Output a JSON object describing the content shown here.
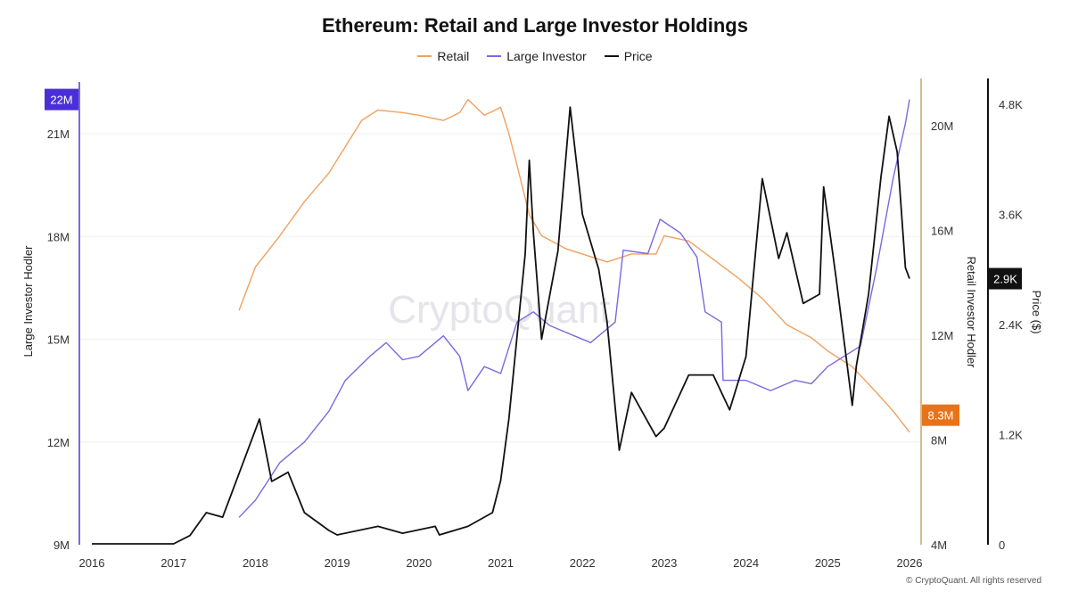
{
  "chart_data": {
    "type": "line",
    "title": "Ethereum: Retail and Large Investor Holdings",
    "legend_placement": "top-center",
    "grid": true,
    "watermark": "CryptoQuant",
    "footer": "© CryptoQuant. All rights reserved",
    "x_axis": {
      "ticks": [
        "2016",
        "2017",
        "2018",
        "2019",
        "2020",
        "2021",
        "2022",
        "2023",
        "2024",
        "2025",
        "2026"
      ],
      "range": [
        2016,
        2026.1
      ]
    },
    "axes": {
      "left": {
        "label": "Large Investor Hodler",
        "ticks": [
          "9M",
          "12M",
          "15M",
          "18M",
          "21M"
        ],
        "tick_values": [
          9,
          12,
          15,
          18,
          21
        ],
        "range": [
          9,
          22
        ],
        "last_value_label": "22M",
        "color": "#4a2fd8"
      },
      "right_retail": {
        "label": "Retail Investor Hodler",
        "ticks": [
          "4M",
          "8M",
          "12M",
          "16M",
          "20M"
        ],
        "tick_values": [
          4,
          8,
          12,
          16,
          20
        ],
        "range": [
          4,
          20
        ],
        "last_value_label": "8.3M",
        "color": "#e8731a"
      },
      "right_price": {
        "label": "Price ($)",
        "ticks": [
          "0",
          "1.2K",
          "2.4K",
          "3.6K",
          "4.8K"
        ],
        "tick_values": [
          0,
          1200,
          2400,
          3600,
          4800
        ],
        "range": [
          0,
          4800
        ],
        "last_value_label": "2.9K",
        "color": "#111111"
      }
    },
    "series": [
      {
        "name": "Retail",
        "axis": "right_retail",
        "color": "#f0a060",
        "unit": "M",
        "x": [
          2017.8,
          2018.0,
          2018.3,
          2018.6,
          2018.9,
          2019.1,
          2019.3,
          2019.5,
          2019.8,
          2020.0,
          2020.3,
          2020.5,
          2020.6,
          2020.8,
          2021.0,
          2021.1,
          2021.2,
          2021.35,
          2021.5,
          2021.8,
          2022.0,
          2022.3,
          2022.6,
          2022.9,
          2023.0,
          2023.3,
          2023.6,
          2023.9,
          2024.2,
          2024.5,
          2024.8,
          2025.0,
          2025.3,
          2025.6,
          2025.8,
          2026.0
        ],
        "y": [
          12.95,
          14.6,
          15.8,
          17.1,
          18.2,
          19.2,
          20.2,
          20.6,
          20.5,
          20.4,
          20.2,
          20.5,
          21.0,
          20.4,
          20.7,
          19.7,
          18.5,
          16.6,
          15.8,
          15.3,
          15.1,
          14.8,
          15.1,
          15.1,
          15.8,
          15.6,
          14.9,
          14.2,
          13.4,
          12.4,
          11.9,
          11.4,
          10.8,
          9.8,
          9.1,
          8.3
        ]
      },
      {
        "name": "Large Investor",
        "axis": "left",
        "color": "#7b68e0",
        "unit": "M",
        "x": [
          2017.8,
          2018.0,
          2018.3,
          2018.6,
          2018.9,
          2019.1,
          2019.4,
          2019.6,
          2019.8,
          2020.0,
          2020.3,
          2020.5,
          2020.6,
          2020.8,
          2021.0,
          2021.2,
          2021.4,
          2021.6,
          2021.9,
          2022.1,
          2022.4,
          2022.5,
          2022.8,
          2022.95,
          2023.2,
          2023.4,
          2023.5,
          2023.7,
          2023.72,
          2024.0,
          2024.3,
          2024.6,
          2024.8,
          2025.0,
          2025.2,
          2025.4,
          2025.6,
          2025.8,
          2025.95,
          2026.0
        ],
        "y": [
          9.8,
          10.3,
          11.4,
          12.0,
          12.9,
          13.8,
          14.5,
          14.9,
          14.4,
          14.5,
          15.1,
          14.5,
          13.5,
          14.2,
          14.0,
          15.5,
          15.8,
          15.4,
          15.1,
          14.9,
          15.5,
          17.6,
          17.5,
          18.5,
          18.1,
          17.4,
          15.8,
          15.5,
          13.8,
          13.8,
          13.5,
          13.8,
          13.7,
          14.2,
          14.5,
          14.8,
          17.1,
          19.7,
          21.3,
          22.0
        ]
      },
      {
        "name": "Price",
        "axis": "right_price",
        "color": "#111111",
        "unit": "$",
        "x": [
          2016.0,
          2017.0,
          2017.2,
          2017.4,
          2017.6,
          2018.05,
          2018.2,
          2018.4,
          2018.6,
          2018.9,
          2019.0,
          2019.5,
          2019.8,
          2020.2,
          2020.25,
          2020.6,
          2020.9,
          2021.0,
          2021.1,
          2021.3,
          2021.35,
          2021.4,
          2021.5,
          2021.7,
          2021.85,
          2022.0,
          2022.2,
          2022.3,
          2022.45,
          2022.6,
          2022.9,
          2023.0,
          2023.3,
          2023.6,
          2023.8,
          2024.0,
          2024.2,
          2024.4,
          2024.5,
          2024.7,
          2024.9,
          2024.95,
          2025.1,
          2025.3,
          2025.35,
          2025.5,
          2025.65,
          2025.75,
          2025.85,
          2025.95,
          2026.0
        ],
        "y": [
          10,
          10,
          100,
          350,
          300,
          1370,
          690,
          790,
          350,
          155,
          107,
          200,
          125,
          200,
          107,
          200,
          350,
          700,
          1370,
          3170,
          4190,
          3400,
          2240,
          3200,
          4770,
          3600,
          3000,
          2440,
          1030,
          1660,
          1180,
          1270,
          1850,
          1850,
          1470,
          2050,
          3990,
          3120,
          3400,
          2630,
          2730,
          3900,
          2920,
          1520,
          1950,
          2730,
          4000,
          4670,
          4280,
          3020,
          2900
        ]
      }
    ]
  }
}
